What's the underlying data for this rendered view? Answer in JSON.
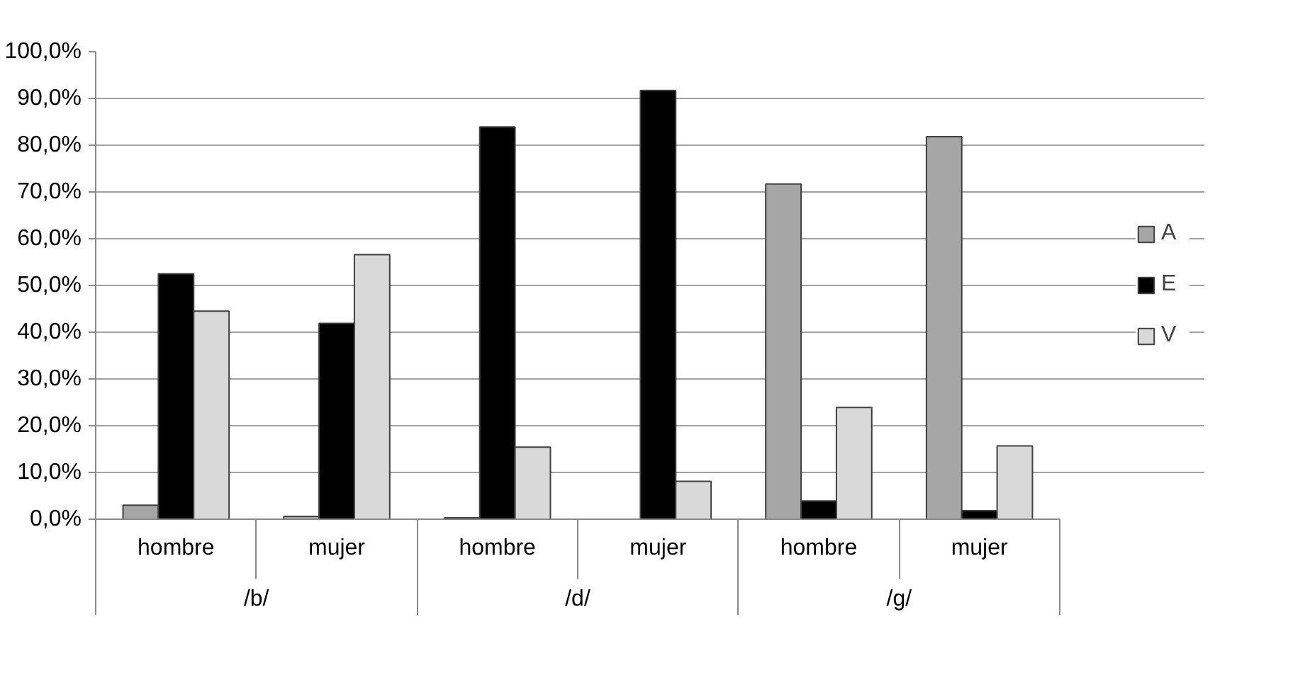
{
  "chart_data": {
    "type": "bar",
    "categories": [
      "hombre",
      "mujer",
      "hombre",
      "mujer",
      "hombre",
      "mujer"
    ],
    "annotations": [
      "/b/",
      "/d/",
      "/g/"
    ],
    "series": [
      {
        "name": "A",
        "color": "#a6a6a6",
        "values": [
          3.0,
          0.6,
          0.3,
          0,
          71.7,
          81.8
        ]
      },
      {
        "name": "E",
        "color": "#000000",
        "values": [
          52.5,
          41.9,
          83.9,
          91.7,
          3.9,
          1.8
        ]
      },
      {
        "name": "V",
        "color": "#d9d9d9",
        "values": [
          44.5,
          56.6,
          15.4,
          8.1,
          23.9,
          15.7
        ]
      }
    ],
    "ylim": [
      0,
      100
    ],
    "yticks": [
      {
        "value": 0,
        "label": "0,0%"
      },
      {
        "value": 10,
        "label": "10,0%"
      },
      {
        "value": 20,
        "label": "20,0%"
      },
      {
        "value": 30,
        "label": "30,0%"
      },
      {
        "value": 40,
        "label": "40,0%"
      },
      {
        "value": 50,
        "label": "50,0%"
      },
      {
        "value": 60,
        "label": "60,0%"
      },
      {
        "value": 70,
        "label": "70,0%"
      },
      {
        "value": 80,
        "label": "80,0%"
      },
      {
        "value": 90,
        "label": "90,0%"
      },
      {
        "value": 100,
        "label": "100,0%"
      }
    ],
    "grid": "y",
    "legend": "right"
  }
}
